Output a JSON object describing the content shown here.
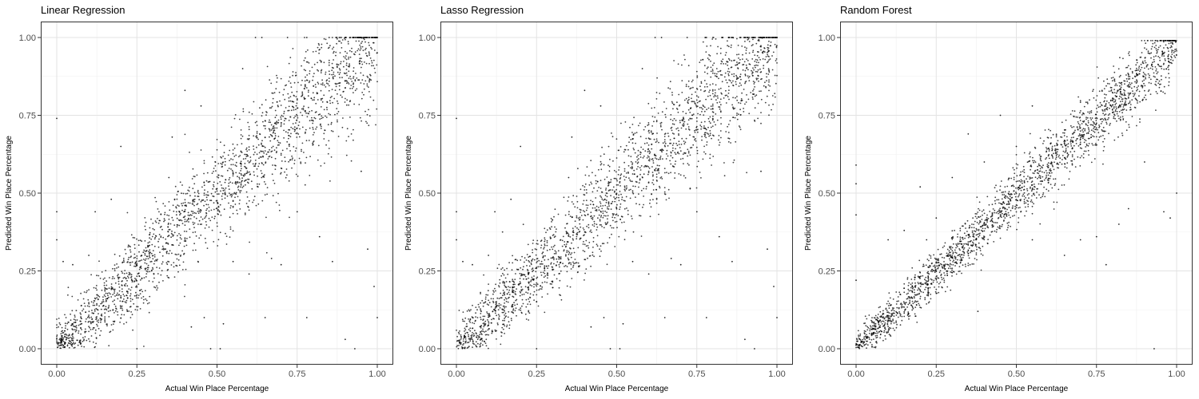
{
  "chart_data": [
    {
      "type": "scatter",
      "title": "Linear Regression",
      "xlabel": "Actual Win Place Percentage",
      "ylabel": "Predicted Win Place Percentage",
      "xlim": [
        0,
        1
      ],
      "ylim": [
        0,
        1
      ],
      "xticks": [
        0,
        0.25,
        0.5,
        0.75,
        1
      ],
      "yticks": [
        0,
        0.25,
        0.5,
        0.75,
        1
      ],
      "xtick_labels": [
        "0.00",
        "0.25",
        "0.50",
        "0.75",
        "1.00"
      ],
      "ytick_labels": [
        "0.00",
        "0.25",
        "0.50",
        "0.75",
        "1.00"
      ],
      "grid": true,
      "points": [
        [
          0.0,
          0.74
        ],
        [
          0.0,
          0.44
        ],
        [
          0.0,
          0.35
        ],
        [
          0.02,
          0.28
        ],
        [
          0.05,
          0.27
        ],
        [
          0.1,
          0.3
        ],
        [
          0.12,
          0.44
        ],
        [
          0.17,
          0.48
        ],
        [
          0.2,
          0.65
        ],
        [
          0.25,
          0.0
        ],
        [
          0.27,
          0.31
        ],
        [
          0.35,
          0.55
        ],
        [
          0.4,
          0.83
        ],
        [
          0.42,
          0.07
        ],
        [
          0.46,
          0.1
        ],
        [
          0.48,
          0.0
        ],
        [
          0.51,
          0.0
        ],
        [
          0.52,
          0.08
        ],
        [
          0.55,
          0.28
        ],
        [
          0.6,
          0.24
        ],
        [
          0.65,
          0.1
        ],
        [
          0.67,
          0.29
        ],
        [
          0.7,
          0.27
        ],
        [
          0.75,
          0.44
        ],
        [
          0.78,
          0.1
        ],
        [
          0.82,
          0.36
        ],
        [
          0.86,
          0.28
        ],
        [
          0.9,
          0.03
        ],
        [
          0.93,
          0.0
        ],
        [
          0.95,
          0.57
        ],
        [
          0.97,
          0.32
        ],
        [
          0.99,
          0.2
        ],
        [
          1.0,
          0.1
        ],
        [
          0.62,
          1.0
        ],
        [
          0.64,
          1.0
        ],
        [
          0.72,
          1.0
        ],
        [
          0.78,
          1.0
        ],
        [
          0.85,
          1.0
        ],
        [
          0.9,
          1.0
        ],
        [
          0.95,
          1.0
        ],
        [
          1.0,
          1.0
        ],
        [
          0.58,
          0.9
        ],
        [
          0.45,
          0.78
        ],
        [
          0.36,
          0.68
        ]
      ],
      "density_band": {
        "slope": 1.0,
        "intercept": 0.0,
        "spread": 0.08,
        "floor": 0.0,
        "cap": 1.0,
        "n": 2200
      }
    },
    {
      "type": "scatter",
      "title": "Lasso Regression",
      "xlabel": "Actual Win Place Percentage",
      "ylabel": "Predicted Win Place Percentage",
      "xlim": [
        0,
        1
      ],
      "ylim": [
        0,
        1
      ],
      "xticks": [
        0,
        0.25,
        0.5,
        0.75,
        1
      ],
      "yticks": [
        0,
        0.25,
        0.5,
        0.75,
        1
      ],
      "xtick_labels": [
        "0.00",
        "0.25",
        "0.50",
        "0.75",
        "1.00"
      ],
      "ytick_labels": [
        "0.00",
        "0.25",
        "0.50",
        "0.75",
        "1.00"
      ],
      "grid": true,
      "points": [
        [
          0.0,
          0.74
        ],
        [
          0.0,
          0.44
        ],
        [
          0.0,
          0.35
        ],
        [
          0.02,
          0.28
        ],
        [
          0.05,
          0.27
        ],
        [
          0.1,
          0.3
        ],
        [
          0.12,
          0.44
        ],
        [
          0.17,
          0.48
        ],
        [
          0.2,
          0.65
        ],
        [
          0.25,
          0.0
        ],
        [
          0.27,
          0.31
        ],
        [
          0.35,
          0.55
        ],
        [
          0.4,
          0.83
        ],
        [
          0.42,
          0.07
        ],
        [
          0.46,
          0.1
        ],
        [
          0.48,
          0.0
        ],
        [
          0.51,
          0.0
        ],
        [
          0.52,
          0.08
        ],
        [
          0.55,
          0.28
        ],
        [
          0.6,
          0.24
        ],
        [
          0.65,
          0.1
        ],
        [
          0.67,
          0.29
        ],
        [
          0.7,
          0.27
        ],
        [
          0.75,
          0.44
        ],
        [
          0.78,
          0.1
        ],
        [
          0.82,
          0.36
        ],
        [
          0.86,
          0.28
        ],
        [
          0.9,
          0.03
        ],
        [
          0.93,
          0.0
        ],
        [
          0.95,
          0.57
        ],
        [
          0.97,
          0.32
        ],
        [
          0.99,
          0.2
        ],
        [
          1.0,
          0.1
        ],
        [
          0.62,
          1.0
        ],
        [
          0.64,
          1.0
        ],
        [
          0.72,
          1.0
        ],
        [
          0.78,
          1.0
        ],
        [
          0.85,
          1.0
        ],
        [
          0.9,
          1.0
        ],
        [
          0.95,
          1.0
        ],
        [
          1.0,
          1.0
        ],
        [
          0.58,
          0.9
        ],
        [
          0.45,
          0.78
        ],
        [
          0.36,
          0.68
        ]
      ],
      "density_band": {
        "slope": 1.0,
        "intercept": 0.0,
        "spread": 0.08,
        "floor": 0.0,
        "cap": 1.0,
        "n": 2200
      }
    },
    {
      "type": "scatter",
      "title": "Random Forest",
      "xlabel": "Actual Win Place Percentage",
      "ylabel": "Predicted Win Place Percentage",
      "xlim": [
        0,
        1
      ],
      "ylim": [
        0,
        1
      ],
      "xticks": [
        0,
        0.25,
        0.5,
        0.75,
        1
      ],
      "yticks": [
        0,
        0.25,
        0.5,
        0.75,
        1
      ],
      "xtick_labels": [
        "0.00",
        "0.25",
        "0.50",
        "0.75",
        "1.00"
      ],
      "ytick_labels": [
        "0.00",
        "0.25",
        "0.50",
        "0.75",
        "1.00"
      ],
      "grid": true,
      "points": [
        [
          0.0,
          0.59
        ],
        [
          0.0,
          0.53
        ],
        [
          0.0,
          0.43
        ],
        [
          0.0,
          0.22
        ],
        [
          0.1,
          0.35
        ],
        [
          0.15,
          0.38
        ],
        [
          0.2,
          0.52
        ],
        [
          0.22,
          0.35
        ],
        [
          0.25,
          0.42
        ],
        [
          0.3,
          0.55
        ],
        [
          0.35,
          0.69
        ],
        [
          0.4,
          0.6
        ],
        [
          0.45,
          0.75
        ],
        [
          0.5,
          0.65
        ],
        [
          0.55,
          0.78
        ],
        [
          0.6,
          0.62
        ],
        [
          0.65,
          0.3
        ],
        [
          0.7,
          0.35
        ],
        [
          0.75,
          0.36
        ],
        [
          0.78,
          0.27
        ],
        [
          0.82,
          0.4
        ],
        [
          0.85,
          0.45
        ],
        [
          0.9,
          0.6
        ],
        [
          0.93,
          0.0
        ],
        [
          0.96,
          0.44
        ],
        [
          0.98,
          0.42
        ],
        [
          1.0,
          0.5
        ],
        [
          0.38,
          0.12
        ],
        [
          0.55,
          0.35
        ]
      ],
      "density_band": {
        "slope": 0.98,
        "intercept": 0.0,
        "spread": 0.045,
        "floor": 0.0,
        "cap": 0.99,
        "n": 2200
      }
    }
  ]
}
